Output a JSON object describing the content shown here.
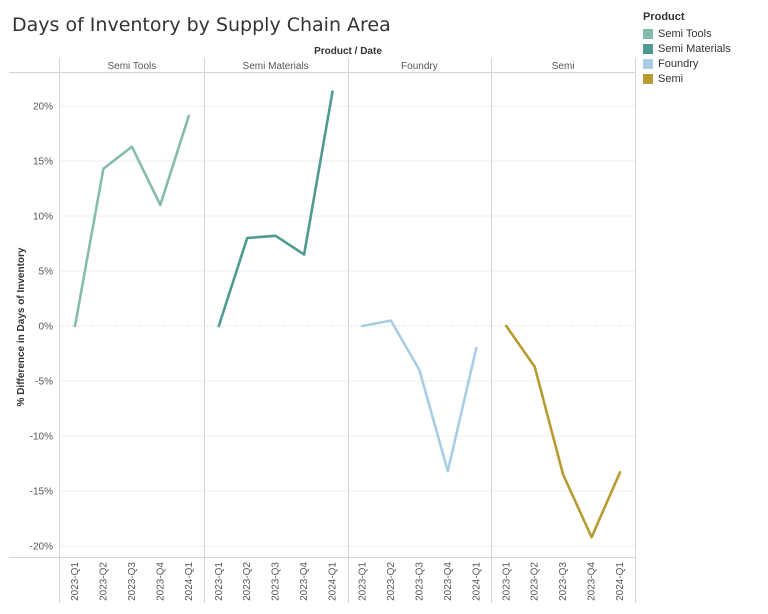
{
  "chart_data": {
    "type": "line",
    "title": "Days of Inventory by Supply Chain Area",
    "column_header": "Product / Date",
    "ylabel": "% Difference in Days of Inventory",
    "ylim": [
      -21,
      23
    ],
    "yticks": [
      20,
      15,
      10,
      5,
      0,
      -5,
      -10,
      -15,
      -20
    ],
    "ytick_labels": [
      "20%",
      "15%",
      "10%",
      "5%",
      "0%",
      "-5%",
      "-10%",
      "-15%",
      "-20%"
    ],
    "categories": [
      "2023-Q1",
      "2023-Q2",
      "2023-Q3",
      "2023-Q4",
      "2024-Q1"
    ],
    "grid": true,
    "legend_title": "Product",
    "legend_position": "top-right",
    "series": [
      {
        "name": "Semi Tools",
        "color": "#86bcb0",
        "values": [
          0,
          14.3,
          16.3,
          11.0,
          19.1
        ]
      },
      {
        "name": "Semi Materials",
        "color": "#4f9a91",
        "values": [
          0,
          8.0,
          8.2,
          6.5,
          21.3
        ]
      },
      {
        "name": "Foundry",
        "color": "#a8cde3",
        "values": [
          0,
          0.5,
          -4.0,
          -13.2,
          -2.0
        ]
      },
      {
        "name": "Semi",
        "color": "#b89b33",
        "values": [
          0,
          -3.7,
          -13.5,
          -19.2,
          -13.3
        ]
      }
    ]
  }
}
